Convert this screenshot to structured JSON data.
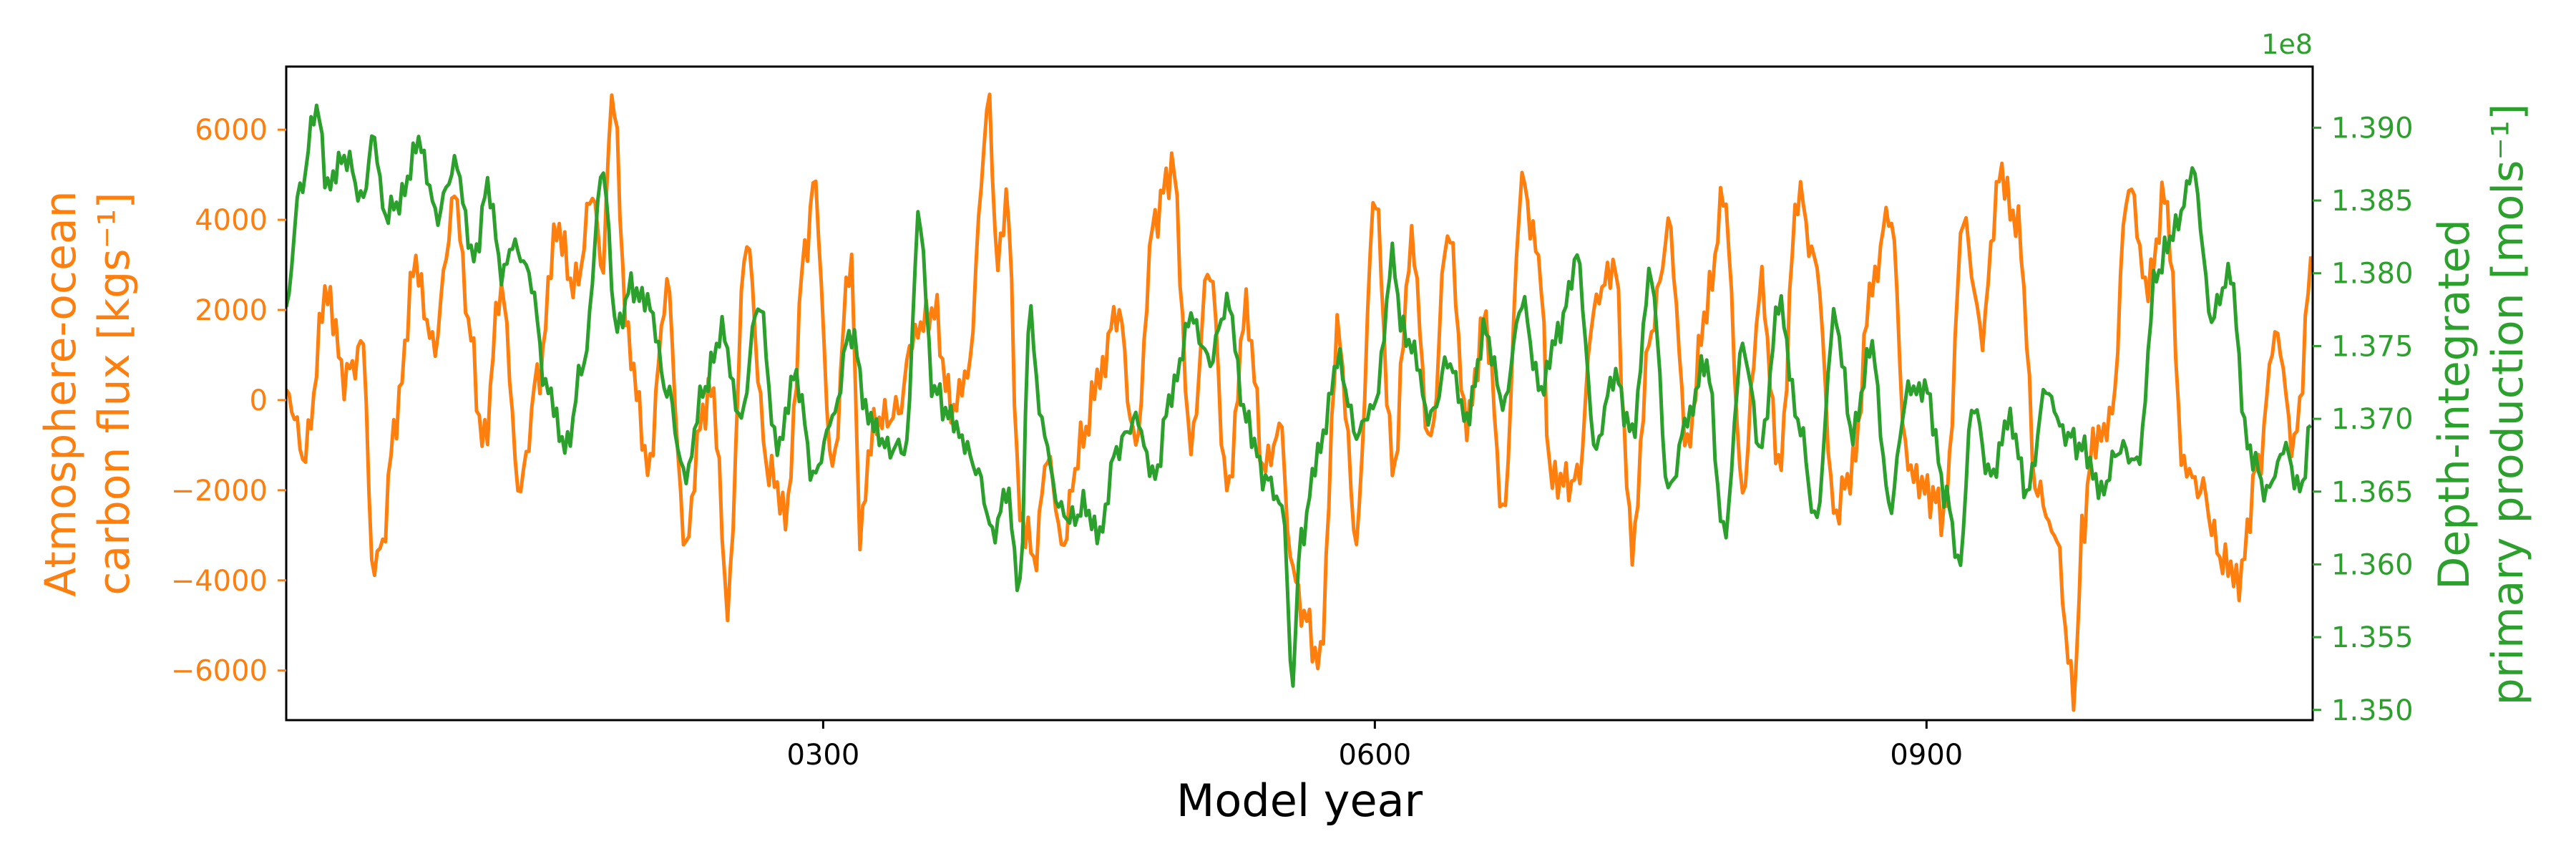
{
  "chart_data": {
    "type": "line",
    "xlabel": "Model year",
    "x_ticks": [
      {
        "value": 300,
        "label": "0300"
      },
      {
        "value": 600,
        "label": "0600"
      },
      {
        "value": 900,
        "label": "0900"
      }
    ],
    "xlim": [
      8,
      1110
    ],
    "left_axis": {
      "label_line1": "Atmosphere-ocean",
      "label_line2": "carbon flux [kgs⁻¹]",
      "color": "#ff7f0e",
      "ylim": [
        -7100,
        7400
      ],
      "ticks": [
        {
          "value": -6000,
          "label": "−6000"
        },
        {
          "value": -4000,
          "label": "−4000"
        },
        {
          "value": -2000,
          "label": "−2000"
        },
        {
          "value": 0,
          "label": "0"
        },
        {
          "value": 2000,
          "label": "2000"
        },
        {
          "value": 4000,
          "label": "4000"
        },
        {
          "value": 6000,
          "label": "6000"
        }
      ]
    },
    "right_axis": {
      "label_line1": "Depth-integrated",
      "label_line2": "primary production [mols⁻¹]",
      "color": "#2ca02c",
      "offset_text": "1e8",
      "ylim": [
        1.3493,
        1.3942
      ],
      "ticks": [
        {
          "value": 1.35,
          "label": "1.350"
        },
        {
          "value": 1.355,
          "label": "1.355"
        },
        {
          "value": 1.36,
          "label": "1.360"
        },
        {
          "value": 1.365,
          "label": "1.365"
        },
        {
          "value": 1.37,
          "label": "1.370"
        },
        {
          "value": 1.375,
          "label": "1.375"
        },
        {
          "value": 1.38,
          "label": "1.380"
        },
        {
          "value": 1.385,
          "label": "1.385"
        },
        {
          "value": 1.39,
          "label": "1.390"
        }
      ]
    },
    "series": [
      {
        "name": "Atmosphere-ocean carbon flux",
        "axis": "left",
        "color": "#ff7f0e",
        "x": [
          8,
          18,
          30,
          40,
          50,
          55,
          60,
          68,
          78,
          88,
          100,
          108,
          115,
          125,
          135,
          145,
          155,
          165,
          175,
          180,
          185,
          195,
          205,
          215,
          225,
          235,
          240,
          248,
          258,
          270,
          280,
          290,
          295,
          305,
          315,
          320,
          328,
          340,
          350,
          360,
          370,
          378,
          390,
          395,
          400,
          407,
          415,
          422,
          430,
          440,
          450,
          460,
          470,
          480,
          490,
          500,
          510,
          520,
          530,
          540,
          550,
          552,
          560,
          570,
          580,
          590,
          600,
          610,
          620,
          630,
          640,
          650,
          660,
          670,
          680,
          690,
          695,
          700,
          710,
          720,
          730,
          740,
          750,
          760,
          770,
          780,
          790,
          800,
          810,
          820,
          830,
          840,
          850,
          860,
          870,
          880,
          890,
          900,
          910,
          920,
          930,
          940,
          950,
          960,
          970,
          980,
          985,
          990,
          1000,
          1010,
          1020,
          1030,
          1040,
          1050,
          1060,
          1070,
          1080,
          1090,
          1100,
          1110
        ],
        "values": [
          200,
          -1200,
          2400,
          500,
          1200,
          -3800,
          -3200,
          -300,
          3000,
          1200,
          4500,
          1500,
          -1000,
          2500,
          -2000,
          500,
          3800,
          2500,
          4600,
          2800,
          6800,
          1000,
          -1500,
          2500,
          -3200,
          -200,
          200,
          -4500,
          3500,
          -1500,
          -2500,
          3200,
          4800,
          -1500,
          3200,
          -2800,
          -500,
          -300,
          1500,
          2000,
          -200,
          500,
          6500,
          3000,
          4500,
          -2500,
          -3500,
          -1200,
          -3200,
          -1000,
          500,
          2000,
          -1000,
          4000,
          5200,
          -1000,
          3000,
          -2000,
          2000,
          -1500,
          -500,
          -3000,
          -4600,
          -5800,
          1500,
          -3000,
          4500,
          -1500,
          3500,
          -1000,
          3800,
          -500,
          1800,
          -2500,
          4800,
          3000,
          -1600,
          -1800,
          -1800,
          2200,
          3000,
          -3200,
          1500,
          3800,
          -1000,
          2000,
          4500,
          -2000,
          2500,
          -1500,
          4600,
          3000,
          -2500,
          -1500,
          2500,
          4200,
          -1500,
          -2000,
          -2500,
          4000,
          1500,
          5000,
          3800,
          -2000,
          -3000,
          -6500,
          -3000,
          -1000,
          -500,
          4800,
          2500,
          4500,
          -1500,
          -2000,
          -3500,
          -4000,
          -1500,
          1500,
          -1000,
          3000
        ],
        "trend_values": [
          0,
          0,
          500,
          0,
          0,
          -2000,
          -1500,
          0,
          1500,
          2000,
          2500,
          1500,
          0,
          1000,
          0,
          500,
          1500,
          1500,
          2500,
          2500,
          3000,
          1000,
          0,
          500,
          -1000,
          -500,
          -500,
          -1500,
          0,
          0,
          -500,
          1500,
          2000,
          0,
          0,
          -500,
          -500,
          0,
          500,
          0,
          0,
          500,
          3000,
          2000,
          1500,
          -500,
          -1500,
          -1500,
          -1500,
          -500,
          500,
          500,
          500,
          1500,
          2000,
          500,
          500,
          0,
          500,
          -500,
          -1000,
          -1500,
          -2500,
          -3000,
          -500,
          0,
          1500,
          0,
          1000,
          0,
          1000,
          500,
          500,
          0,
          1500,
          1500,
          0,
          -500,
          -500,
          500,
          1000,
          0,
          500,
          1000,
          500,
          1000,
          1500,
          0,
          500,
          0,
          1500,
          1500,
          0,
          -500,
          500,
          1000,
          0,
          -500,
          -500,
          1000,
          1000,
          2000,
          2000,
          0,
          -1000,
          -2500,
          -1500,
          -500,
          0,
          2000,
          2000,
          1500,
          0,
          -1000,
          -1500,
          -1500,
          -500,
          500,
          0,
          1000
        ]
      },
      {
        "name": "Depth-integrated primary production",
        "axis": "right",
        "color": "#2ca02c",
        "x": [
          8,
          15,
          25,
          30,
          40,
          50,
          55,
          62,
          70,
          80,
          90,
          100,
          110,
          118,
          125,
          132,
          140,
          150,
          160,
          170,
          180,
          188,
          195,
          205,
          215,
          225,
          235,
          245,
          255,
          265,
          275,
          285,
          295,
          305,
          315,
          325,
          335,
          345,
          352,
          360,
          370,
          378,
          385,
          392,
          400,
          407,
          412,
          420,
          428,
          435,
          442,
          450,
          460,
          470,
          480,
          490,
          500,
          510,
          520,
          530,
          540,
          550,
          555,
          560,
          570,
          580,
          590,
          600,
          610,
          615,
          620,
          630,
          640,
          650,
          660,
          670,
          680,
          690,
          700,
          710,
          720,
          730,
          740,
          750,
          760,
          770,
          780,
          790,
          800,
          810,
          820,
          830,
          840,
          850,
          860,
          870,
          880,
          890,
          900,
          910,
          918,
          925,
          935,
          945,
          955,
          965,
          975,
          985,
          995,
          1005,
          1015,
          1025,
          1035,
          1045,
          1055,
          1065,
          1075,
          1085,
          1095,
          1103,
          1110
        ],
        "values": [
          1.3775,
          1.3855,
          1.3915,
          1.386,
          1.388,
          1.385,
          1.3895,
          1.384,
          1.385,
          1.389,
          1.384,
          1.3875,
          1.381,
          1.386,
          1.38,
          1.382,
          1.38,
          1.372,
          1.368,
          1.374,
          1.387,
          1.376,
          1.379,
          1.378,
          1.372,
          1.366,
          1.372,
          1.376,
          1.37,
          1.378,
          1.368,
          1.373,
          1.366,
          1.37,
          1.376,
          1.37,
          1.368,
          1.368,
          1.384,
          1.372,
          1.37,
          1.368,
          1.366,
          1.362,
          1.365,
          1.358,
          1.377,
          1.369,
          1.364,
          1.363,
          1.364,
          1.362,
          1.368,
          1.37,
          1.366,
          1.372,
          1.377,
          1.374,
          1.378,
          1.37,
          1.366,
          1.364,
          1.352,
          1.362,
          1.368,
          1.374,
          1.369,
          1.371,
          1.381,
          1.376,
          1.375,
          1.37,
          1.374,
          1.37,
          1.376,
          1.371,
          1.378,
          1.372,
          1.376,
          1.381,
          1.368,
          1.373,
          1.369,
          1.38,
          1.365,
          1.37,
          1.374,
          1.362,
          1.375,
          1.368,
          1.378,
          1.37,
          1.363,
          1.377,
          1.369,
          1.375,
          1.364,
          1.372,
          1.372,
          1.365,
          1.36,
          1.371,
          1.366,
          1.37,
          1.365,
          1.372,
          1.369,
          1.368,
          1.365,
          1.368,
          1.367,
          1.38,
          1.383,
          1.387,
          1.377,
          1.38,
          1.368,
          1.365,
          1.368,
          1.365,
          1.37
        ]
      }
    ]
  }
}
